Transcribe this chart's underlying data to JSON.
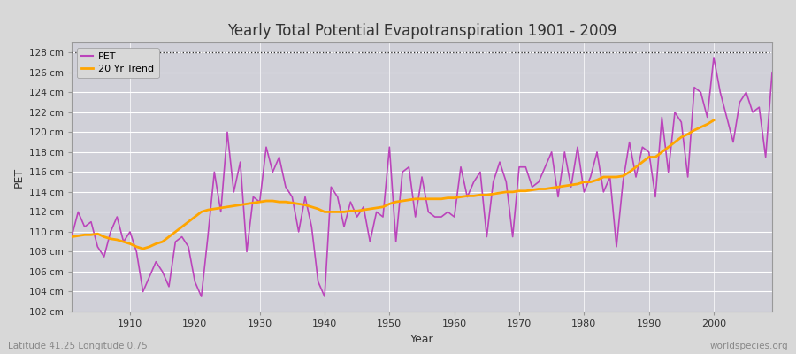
{
  "title": "Yearly Total Potential Evapotranspiration 1901 - 2009",
  "xlabel": "Year",
  "ylabel": "PET",
  "bottom_left_label": "Latitude 41.25 Longitude 0.75",
  "bottom_right_label": "worldspecies.org",
  "ylim": [
    102,
    129
  ],
  "yticks": [
    102,
    104,
    106,
    108,
    110,
    112,
    114,
    116,
    118,
    120,
    122,
    124,
    126,
    128
  ],
  "ytick_labels": [
    "102 cm",
    "104 cm",
    "106 cm",
    "108 cm",
    "110 cm",
    "112 cm",
    "114 cm",
    "116 cm",
    "118 cm",
    "120 cm",
    "122 cm",
    "124 cm",
    "126 cm",
    "128 cm"
  ],
  "xticks": [
    1910,
    1920,
    1930,
    1940,
    1950,
    1960,
    1970,
    1980,
    1990,
    2000
  ],
  "pet_color": "#bb44bb",
  "trend_color": "#ffa500",
  "background_color": "#d8d8d8",
  "plot_bg_color": "#d0d0d8",
  "legend_bg_color": "#d8d8d8",
  "dotted_line_y": 128,
  "years": [
    1901,
    1902,
    1903,
    1904,
    1905,
    1906,
    1907,
    1908,
    1909,
    1910,
    1911,
    1912,
    1913,
    1914,
    1915,
    1916,
    1917,
    1918,
    1919,
    1920,
    1921,
    1922,
    1923,
    1924,
    1925,
    1926,
    1927,
    1928,
    1929,
    1930,
    1931,
    1932,
    1933,
    1934,
    1935,
    1936,
    1937,
    1938,
    1939,
    1940,
    1941,
    1942,
    1943,
    1944,
    1945,
    1946,
    1947,
    1948,
    1949,
    1950,
    1951,
    1952,
    1953,
    1954,
    1955,
    1956,
    1957,
    1958,
    1959,
    1960,
    1961,
    1962,
    1963,
    1964,
    1965,
    1966,
    1967,
    1968,
    1969,
    1970,
    1971,
    1972,
    1973,
    1974,
    1975,
    1976,
    1977,
    1978,
    1979,
    1980,
    1981,
    1982,
    1983,
    1984,
    1985,
    1986,
    1987,
    1988,
    1989,
    1990,
    1991,
    1992,
    1993,
    1994,
    1995,
    1996,
    1997,
    1998,
    1999,
    2000,
    2001,
    2002,
    2003,
    2004,
    2005,
    2006,
    2007,
    2008,
    2009
  ],
  "pet_values": [
    109.5,
    112.0,
    110.5,
    111.0,
    108.5,
    107.5,
    110.0,
    111.5,
    109.0,
    110.0,
    108.0,
    104.0,
    105.5,
    107.0,
    106.0,
    104.5,
    109.0,
    109.5,
    108.5,
    105.0,
    103.5,
    109.5,
    116.0,
    112.0,
    120.0,
    114.0,
    117.0,
    108.0,
    113.5,
    113.0,
    118.5,
    116.0,
    117.5,
    114.5,
    113.5,
    110.0,
    113.5,
    110.5,
    105.0,
    103.5,
    114.5,
    113.5,
    110.5,
    113.0,
    111.5,
    112.5,
    109.0,
    112.0,
    111.5,
    118.5,
    109.0,
    116.0,
    116.5,
    111.5,
    115.5,
    112.0,
    111.5,
    111.5,
    112.0,
    111.5,
    116.5,
    113.5,
    115.0,
    116.0,
    109.5,
    115.0,
    117.0,
    115.0,
    109.5,
    116.5,
    116.5,
    114.5,
    115.0,
    116.5,
    118.0,
    113.5,
    118.0,
    114.5,
    118.5,
    114.0,
    115.5,
    118.0,
    114.0,
    115.5,
    108.5,
    115.0,
    119.0,
    115.5,
    118.5,
    118.0,
    113.5,
    121.5,
    116.0,
    122.0,
    121.0,
    115.5,
    124.5,
    124.0,
    121.5,
    127.5,
    124.0,
    121.5,
    119.0,
    123.0,
    124.0,
    122.0,
    122.5,
    117.5,
    126.0
  ],
  "trend_values": [
    109.5,
    109.6,
    109.7,
    109.7,
    109.8,
    109.5,
    109.3,
    109.2,
    109.0,
    108.8,
    108.5,
    108.3,
    108.5,
    108.8,
    109.0,
    109.5,
    110.0,
    110.5,
    111.0,
    111.5,
    112.0,
    112.2,
    112.3,
    112.4,
    112.5,
    112.6,
    112.7,
    112.8,
    112.9,
    113.0,
    113.1,
    113.1,
    113.0,
    113.0,
    112.9,
    112.8,
    112.7,
    112.5,
    112.3,
    112.0,
    112.0,
    112.0,
    112.0,
    112.1,
    112.1,
    112.2,
    112.3,
    112.4,
    112.5,
    112.8,
    113.0,
    113.1,
    113.2,
    113.3,
    113.3,
    113.3,
    113.3,
    113.3,
    113.4,
    113.4,
    113.5,
    113.6,
    113.6,
    113.7,
    113.7,
    113.8,
    113.9,
    114.0,
    114.0,
    114.1,
    114.1,
    114.2,
    114.3,
    114.3,
    114.4,
    114.5,
    114.6,
    114.7,
    114.8,
    115.0,
    115.0,
    115.2,
    115.5,
    115.5,
    115.5,
    115.6,
    116.0,
    116.5,
    117.0,
    117.5,
    117.5,
    118.0,
    118.5,
    119.0,
    119.5,
    119.8,
    120.2,
    120.5,
    120.8,
    121.2,
    null,
    null,
    null,
    null,
    null,
    null,
    null,
    null,
    null
  ]
}
